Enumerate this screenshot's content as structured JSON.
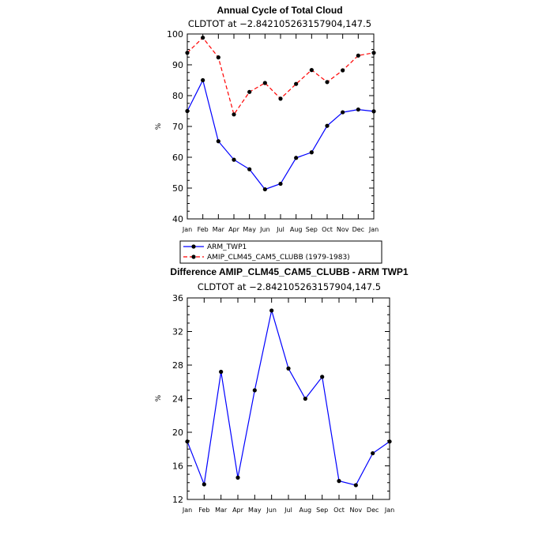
{
  "chart_data": [
    {
      "type": "line",
      "title": "Annual Cycle of Total Cloud",
      "subtitle": "CLDTOT at −2.842105263157904,147.5",
      "ylabel": "%",
      "categories": [
        "Jan",
        "Feb",
        "Mar",
        "Apr",
        "May",
        "Jun",
        "Jul",
        "Aug",
        "Sep",
        "Oct",
        "Nov",
        "Dec",
        "Jan"
      ],
      "ylim": [
        40,
        100
      ],
      "yticks": [
        40,
        50,
        60,
        70,
        80,
        90,
        100
      ],
      "legend_position": "bottom",
      "series": [
        {
          "name": "ARM_TWP1",
          "color": "#0000ff",
          "dash": "solid",
          "marker": "dot",
          "values": [
            75.0,
            85.0,
            65.2,
            59.2,
            56.1,
            49.6,
            51.4,
            59.8,
            61.6,
            70.2,
            74.6,
            75.5,
            74.9
          ]
        },
        {
          "name": "AMIP_CLM45_CAM5_CLUBB (1979-1983)",
          "color": "#ff0000",
          "dash": "dashed",
          "marker": "dot",
          "values": [
            93.9,
            98.8,
            92.4,
            73.9,
            81.2,
            84.1,
            79.0,
            83.8,
            88.3,
            84.4,
            88.2,
            93.0,
            93.9
          ]
        }
      ]
    },
    {
      "type": "line",
      "title": "Difference AMIP_CLM45_CAM5_CLUBB - ARM TWP1",
      "subtitle": "CLDTOT at −2.842105263157904,147.5",
      "ylabel": "%",
      "categories": [
        "Jan",
        "Feb",
        "Mar",
        "Apr",
        "May",
        "Jun",
        "Jul",
        "Aug",
        "Sep",
        "Oct",
        "Nov",
        "Dec",
        "Jan"
      ],
      "ylim": [
        12,
        36
      ],
      "yticks": [
        12,
        16,
        20,
        24,
        28,
        32,
        36
      ],
      "series": [
        {
          "color": "#0000ff",
          "dash": "solid",
          "marker": "dot",
          "values": [
            18.9,
            13.8,
            27.2,
            14.6,
            25.0,
            34.5,
            27.6,
            24.0,
            26.6,
            14.2,
            13.7,
            17.5,
            18.9
          ]
        }
      ]
    }
  ]
}
